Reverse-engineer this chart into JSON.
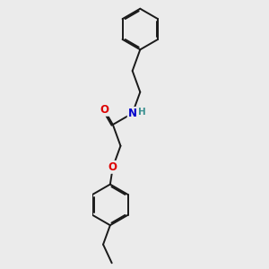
{
  "background_color": "#ebebeb",
  "bond_color": "#1a1a1a",
  "atom_colors": {
    "O": "#dd0000",
    "N": "#0000cc",
    "H": "#3a9090",
    "C": "#1a1a1a"
  },
  "figsize": [
    3.0,
    3.0
  ],
  "dpi": 100,
  "lw": 1.4,
  "ring_r": 0.38
}
